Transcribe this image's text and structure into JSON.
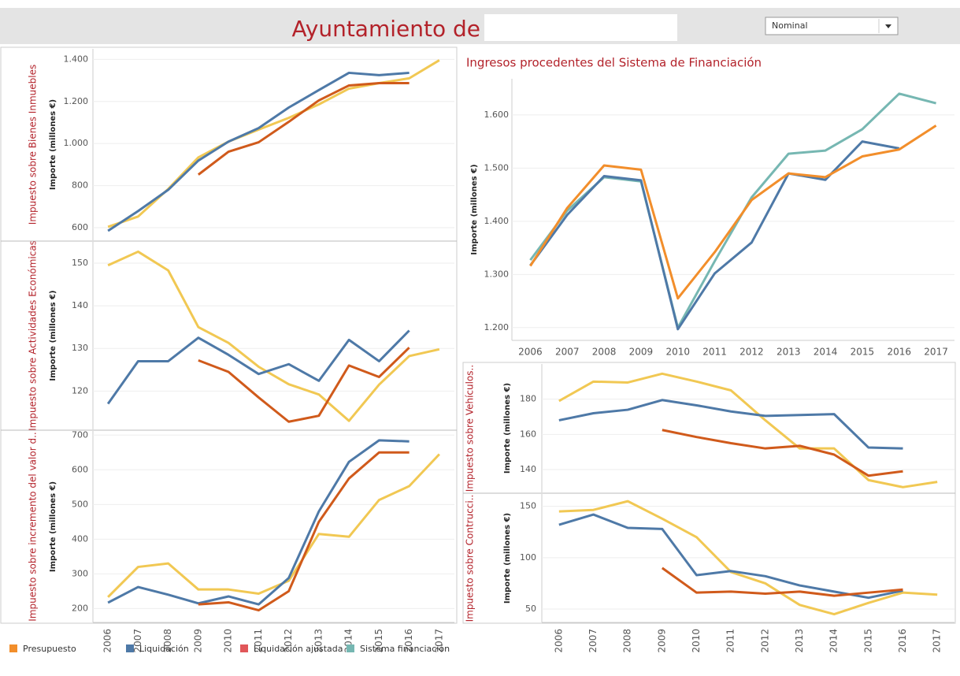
{
  "header": {
    "title": "Ayuntamiento de",
    "dropdown": "Nominal"
  },
  "legend": [
    {
      "name": "Presupuesto",
      "color": "#f28e2b"
    },
    {
      "name": "Liquidación",
      "color": "#4e79a7"
    },
    {
      "name": "Liquidación ajustada",
      "color": "#e15759"
    },
    {
      "name": "Sistema financiación",
      "color": "#76b7b2"
    }
  ],
  "chart_data": [
    {
      "type": "line",
      "title": "Impuesto sobre Bienes Inmuebles",
      "y_label": "Importe (millones €)",
      "ylim": [
        540,
        1450
      ],
      "grid": true,
      "yticks": [
        600,
        800,
        {
          "value": 1000,
          "label": "1.000"
        },
        {
          "value": 1200,
          "label": "1.200"
        },
        {
          "value": 1400,
          "label": "1.400"
        }
      ],
      "series": [
        {
          "color": "#f1c853",
          "values": [
            604,
            653,
            784,
            934,
            1009,
            1066,
            1122,
            1186,
            1261,
            1287,
            1310,
            1396
          ]
        },
        {
          "color": "#4e79a7",
          "values": [
            585,
            679,
            780,
            919,
            1009,
            1073,
            1171,
            1254,
            1336,
            1325,
            1336,
            null
          ]
        },
        {
          "color": "#d05a1b",
          "values": [
            null,
            null,
            null,
            852,
            961,
            1006,
            1103,
            1205,
            1276,
            1287,
            1287,
            null
          ]
        }
      ]
    },
    {
      "type": "line",
      "title": "Impuesto sobre Actividades Económicas",
      "y_label": "Importe (millones €)",
      "ylim": [
        111,
        155
      ],
      "grid": true,
      "yticks": [
        120,
        130,
        140,
        150
      ],
      "series": [
        {
          "color": "#f1c853",
          "values": [
            149.5,
            152.7,
            148.3,
            135,
            131.3,
            125.7,
            121.6,
            119.2,
            113,
            121.5,
            128.2,
            129.8
          ]
        },
        {
          "color": "#4e79a7",
          "values": [
            117,
            127,
            127,
            132.5,
            128.5,
            124,
            126.3,
            122.4,
            132,
            127,
            134.2,
            null
          ]
        },
        {
          "color": "#d05a1b",
          "values": [
            null,
            null,
            null,
            127.2,
            124.5,
            118.5,
            112.8,
            114.2,
            126,
            123.3,
            130.2,
            null
          ]
        }
      ]
    },
    {
      "type": "line",
      "title": "Impuesto sobre incremento del valor d..",
      "y_label": "Importe (millones €)",
      "ylim": [
        160,
        712
      ],
      "grid": true,
      "yticks": [
        200,
        300,
        400,
        500,
        600,
        700
      ],
      "categories": [
        "2006",
        "2007",
        "2008",
        "2009",
        "2010",
        "2011",
        "2012",
        "2013",
        "2014",
        "2015",
        "2016",
        "2017"
      ],
      "series": [
        {
          "color": "#f1c853",
          "values": [
            233,
            320,
            330,
            255,
            255,
            243,
            280,
            415,
            407,
            513,
            553,
            645
          ]
        },
        {
          "color": "#4e79a7",
          "values": [
            217,
            262,
            240,
            215,
            235,
            212,
            288,
            480,
            623,
            685,
            682,
            null
          ]
        },
        {
          "color": "#d05a1b",
          "values": [
            null,
            null,
            null,
            212,
            218,
            195,
            250,
            450,
            575,
            650,
            650,
            null
          ]
        }
      ]
    },
    {
      "type": "line",
      "title": "Ingresos procedentes del Sistema de Financiación",
      "y_label": "Importe (millones €)",
      "ylim": [
        1176,
        1668
      ],
      "grid": true,
      "yticks": [
        {
          "value": 1200,
          "label": "1.200"
        },
        {
          "value": 1300,
          "label": "1.300"
        },
        {
          "value": 1400,
          "label": "1.400"
        },
        {
          "value": 1500,
          "label": "1.500"
        },
        {
          "value": 1600,
          "label": "1.600"
        }
      ],
      "categories": [
        "2006",
        "2007",
        "2008",
        "2009",
        "2010",
        "2011",
        "2012",
        "2013",
        "2014",
        "2015",
        "2016",
        "2017"
      ],
      "series": [
        {
          "color": "#76b7b2",
          "values": [
            1327,
            1420,
            1483,
            1475,
            1200,
            1325,
            1445,
            1527,
            1533,
            1573,
            1640,
            1622
          ]
        },
        {
          "color": "#4e79a7",
          "values": [
            1317,
            1412,
            1485,
            1477,
            1197,
            1302,
            1360,
            1490,
            1478,
            1550,
            1537,
            null
          ]
        },
        {
          "color": "#f28e2b",
          "values": [
            1316,
            1425,
            1505,
            1497,
            1255,
            1342,
            1440,
            1490,
            1483,
            1522,
            1535,
            1580
          ]
        }
      ]
    },
    {
      "type": "line",
      "title": "Impuesto sobre Vehículos..",
      "y_label": "Importe (millones €)",
      "ylim": [
        127,
        200
      ],
      "grid": true,
      "yticks": [
        140,
        160,
        180
      ],
      "series": [
        {
          "color": "#f1c853",
          "values": [
            179,
            190,
            189.5,
            194.5,
            190,
            185,
            168,
            152,
            152,
            134,
            130,
            133
          ]
        },
        {
          "color": "#4e79a7",
          "values": [
            168,
            172,
            174,
            179.5,
            176.5,
            173,
            170.5,
            171,
            171.5,
            152.5,
            152,
            null
          ]
        },
        {
          "color": "#d05a1b",
          "values": [
            null,
            null,
            null,
            162.5,
            158.5,
            155,
            152,
            153.5,
            148.5,
            136.5,
            139,
            null
          ]
        }
      ]
    },
    {
      "type": "line",
      "title": "Impuesto sobre Contrucci..",
      "y_label": "Importe (millones €)",
      "ylim": [
        37,
        162
      ],
      "grid": true,
      "yticks": [
        50,
        100,
        150
      ],
      "categories": [
        "2006",
        "2007",
        "2008",
        "2009",
        "2010",
        "2011",
        "2012",
        "2013",
        "2014",
        "2015",
        "2016",
        "2017"
      ],
      "series": [
        {
          "color": "#f1c853",
          "values": [
            145,
            146.5,
            155,
            138,
            120,
            86,
            75,
            54,
            45,
            56,
            66,
            64
          ]
        },
        {
          "color": "#4e79a7",
          "values": [
            132,
            142,
            129,
            128,
            83,
            87,
            82,
            73,
            67,
            61,
            68,
            null
          ]
        },
        {
          "color": "#d05a1b",
          "values": [
            null,
            null,
            null,
            90,
            66,
            67,
            65,
            67,
            63,
            66,
            69,
            null
          ]
        }
      ]
    }
  ]
}
